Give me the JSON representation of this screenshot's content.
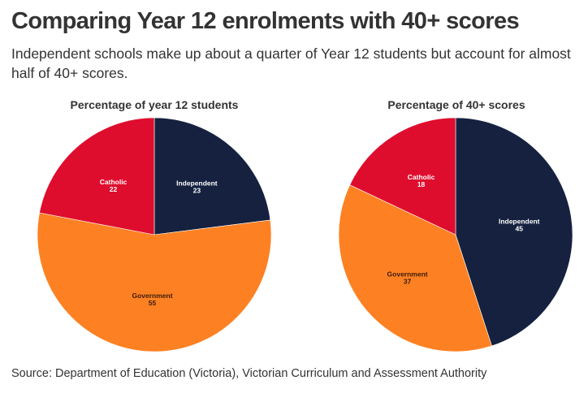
{
  "header": {
    "title": "Comparing Year 12 enrolments with 40+ scores",
    "subtitle": "Independent schools make up about a quarter of Year 12 students but account for almost half of 40+ scores."
  },
  "footer": {
    "source": "Source: Department of Education (Victoria), Victorian Curriculum and Assessment Authority"
  },
  "chart_data": [
    {
      "type": "pie",
      "title": "Percentage of year 12 students",
      "unit": "%",
      "slices": [
        {
          "label": "Independent",
          "value": 23,
          "color": "#15213f",
          "text_color": "#ffffff"
        },
        {
          "label": "Government",
          "value": 55,
          "color": "#fd8123",
          "text_color": "#3b1a0a"
        },
        {
          "label": "Catholic",
          "value": 22,
          "color": "#df0d2d",
          "text_color": "#ffffff"
        }
      ]
    },
    {
      "type": "pie",
      "title": "Percentage of 40+ scores",
      "unit": "%",
      "slices": [
        {
          "label": "Independent",
          "value": 45,
          "color": "#15213f",
          "text_color": "#ffffff"
        },
        {
          "label": "Government",
          "value": 37,
          "color": "#fd8123",
          "text_color": "#3b1a0a"
        },
        {
          "label": "Catholic",
          "value": 18,
          "color": "#df0d2d",
          "text_color": "#ffffff"
        }
      ]
    }
  ]
}
